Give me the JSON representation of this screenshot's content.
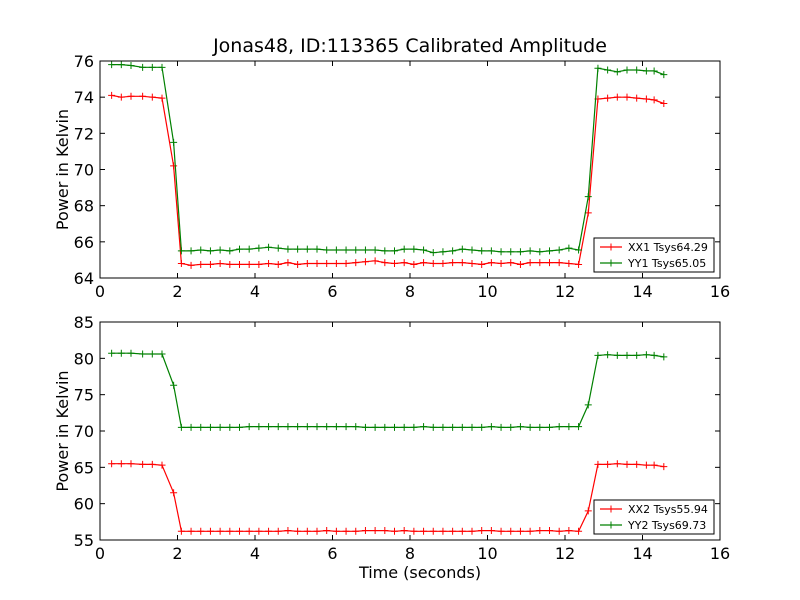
{
  "figure": {
    "title": "Jonas48, ID:113365 Calibrated Amplitude"
  },
  "chart_data": [
    {
      "type": "line",
      "title": "Jonas48, ID:113365 Calibrated Amplitude",
      "xlabel": "",
      "ylabel": "Power in Kelvin",
      "xlim": [
        0,
        16
      ],
      "ylim": [
        64,
        76
      ],
      "xticks": [
        "0",
        "2",
        "4",
        "6",
        "8",
        "10",
        "12",
        "14",
        "16"
      ],
      "yticks": [
        "64",
        "66",
        "68",
        "70",
        "72",
        "74",
        "76"
      ],
      "grid": false,
      "legend_position": "lower-right",
      "marker": "+",
      "x": [
        0.3,
        0.55,
        0.8,
        1.1,
        1.35,
        1.6,
        1.9,
        2.1,
        2.35,
        2.6,
        2.85,
        3.1,
        3.35,
        3.6,
        3.85,
        4.1,
        4.35,
        4.6,
        4.85,
        5.1,
        5.35,
        5.6,
        5.85,
        6.1,
        6.35,
        6.6,
        6.85,
        7.1,
        7.35,
        7.6,
        7.85,
        8.1,
        8.35,
        8.6,
        8.85,
        9.1,
        9.35,
        9.6,
        9.85,
        10.1,
        10.35,
        10.6,
        10.85,
        11.1,
        11.35,
        11.6,
        11.85,
        12.1,
        12.35,
        12.6,
        12.85,
        13.1,
        13.35,
        13.6,
        13.85,
        14.1,
        14.3,
        14.55
      ],
      "series": [
        {
          "name": "XX1 Tsys64.29",
          "color": "#ff0000",
          "values": [
            74.1,
            74.0,
            74.05,
            74.05,
            74.0,
            73.95,
            70.2,
            64.8,
            64.7,
            64.75,
            64.75,
            64.8,
            64.75,
            64.75,
            64.75,
            64.75,
            64.8,
            64.75,
            64.85,
            64.75,
            64.8,
            64.8,
            64.8,
            64.8,
            64.8,
            64.85,
            64.9,
            64.95,
            64.85,
            64.8,
            64.85,
            64.75,
            64.85,
            64.8,
            64.8,
            64.85,
            64.85,
            64.8,
            64.75,
            64.85,
            64.8,
            64.85,
            64.75,
            64.85,
            64.85,
            64.85,
            64.85,
            64.8,
            64.75,
            67.6,
            73.9,
            73.95,
            74.0,
            74.0,
            73.95,
            73.9,
            73.85,
            73.65
          ]
        },
        {
          "name": "YY1 Tsys65.05",
          "color": "#008000",
          "values": [
            75.8,
            75.8,
            75.75,
            75.65,
            75.65,
            75.65,
            71.5,
            65.5,
            65.5,
            65.55,
            65.5,
            65.55,
            65.5,
            65.6,
            65.6,
            65.65,
            65.7,
            65.65,
            65.6,
            65.6,
            65.6,
            65.6,
            65.55,
            65.55,
            65.55,
            65.55,
            65.55,
            65.55,
            65.5,
            65.5,
            65.6,
            65.6,
            65.55,
            65.4,
            65.45,
            65.5,
            65.6,
            65.55,
            65.5,
            65.5,
            65.45,
            65.45,
            65.45,
            65.5,
            65.45,
            65.5,
            65.55,
            65.65,
            65.55,
            68.5,
            75.6,
            75.5,
            75.4,
            75.5,
            75.5,
            75.45,
            75.45,
            75.25
          ]
        }
      ]
    },
    {
      "type": "line",
      "title": "",
      "xlabel": "Time (seconds)",
      "ylabel": "Power in Kelvin",
      "xlim": [
        0,
        16
      ],
      "ylim": [
        55,
        85
      ],
      "xticks": [
        "0",
        "2",
        "4",
        "6",
        "8",
        "10",
        "12",
        "14",
        "16"
      ],
      "yticks": [
        "55",
        "60",
        "65",
        "70",
        "75",
        "80",
        "85"
      ],
      "grid": false,
      "legend_position": "lower-right",
      "marker": "+",
      "x": [
        0.3,
        0.55,
        0.8,
        1.1,
        1.35,
        1.6,
        1.9,
        2.1,
        2.35,
        2.6,
        2.85,
        3.1,
        3.35,
        3.6,
        3.85,
        4.1,
        4.35,
        4.6,
        4.85,
        5.1,
        5.35,
        5.6,
        5.85,
        6.1,
        6.35,
        6.6,
        6.85,
        7.1,
        7.35,
        7.6,
        7.85,
        8.1,
        8.35,
        8.6,
        8.85,
        9.1,
        9.35,
        9.6,
        9.85,
        10.1,
        10.35,
        10.6,
        10.85,
        11.1,
        11.35,
        11.6,
        11.85,
        12.1,
        12.35,
        12.6,
        12.85,
        13.1,
        13.35,
        13.6,
        13.85,
        14.1,
        14.3,
        14.55
      ],
      "series": [
        {
          "name": "XX2 Tsys55.94",
          "color": "#ff0000",
          "values": [
            65.5,
            65.5,
            65.5,
            65.4,
            65.4,
            65.3,
            61.5,
            56.2,
            56.2,
            56.2,
            56.2,
            56.2,
            56.2,
            56.2,
            56.2,
            56.2,
            56.2,
            56.2,
            56.3,
            56.2,
            56.2,
            56.2,
            56.3,
            56.2,
            56.2,
            56.2,
            56.3,
            56.3,
            56.3,
            56.2,
            56.3,
            56.2,
            56.2,
            56.2,
            56.2,
            56.2,
            56.2,
            56.2,
            56.3,
            56.3,
            56.2,
            56.2,
            56.2,
            56.2,
            56.3,
            56.3,
            56.2,
            56.3,
            56.2,
            59.0,
            65.4,
            65.4,
            65.5,
            65.4,
            65.4,
            65.3,
            65.3,
            65.1
          ]
        },
        {
          "name": "YY2 Tsys69.73",
          "color": "#008000",
          "values": [
            80.7,
            80.7,
            80.7,
            80.6,
            80.6,
            80.6,
            76.3,
            70.5,
            70.5,
            70.5,
            70.5,
            70.5,
            70.5,
            70.5,
            70.6,
            70.6,
            70.6,
            70.6,
            70.6,
            70.6,
            70.6,
            70.6,
            70.6,
            70.6,
            70.6,
            70.6,
            70.5,
            70.5,
            70.5,
            70.5,
            70.5,
            70.5,
            70.6,
            70.5,
            70.5,
            70.5,
            70.5,
            70.5,
            70.5,
            70.6,
            70.5,
            70.5,
            70.6,
            70.5,
            70.5,
            70.5,
            70.6,
            70.6,
            70.6,
            73.6,
            80.4,
            80.5,
            80.4,
            80.4,
            80.4,
            80.5,
            80.4,
            80.2
          ]
        }
      ]
    }
  ]
}
